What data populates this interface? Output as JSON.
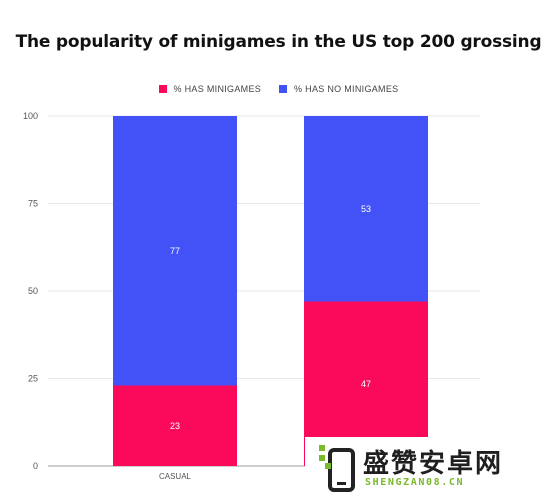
{
  "chart_data": {
    "type": "bar",
    "stacked": true,
    "title": "The popularity of minigames in the US top 200 grossing",
    "categories": [
      "CASUAL",
      ""
    ],
    "series": [
      {
        "name": "%  HAS MINIGAMES",
        "color": "#fb0a5c",
        "values": [
          23,
          47
        ]
      },
      {
        "name": "% HAS NO MINIGAMES",
        "color": "#4352f7",
        "values": [
          77,
          53
        ]
      }
    ],
    "ylim": [
      0,
      100
    ],
    "yticks": [
      0,
      25,
      50,
      75,
      100
    ],
    "grid": true,
    "legend_position": "top-center"
  },
  "watermark": {
    "text": "盛赞安卓网",
    "subtext": "SHENGZAN08.CN",
    "accent_color": "#7ab82c"
  }
}
